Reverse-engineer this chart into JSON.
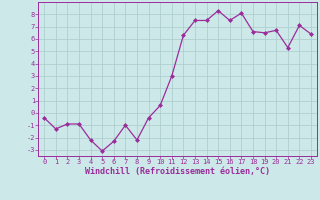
{
  "x": [
    0,
    1,
    2,
    3,
    4,
    5,
    6,
    7,
    8,
    9,
    10,
    11,
    12,
    13,
    14,
    15,
    16,
    17,
    18,
    19,
    20,
    21,
    22,
    23
  ],
  "y": [
    -0.4,
    -1.3,
    -0.9,
    -0.9,
    -2.2,
    -3.1,
    -2.3,
    -1.0,
    -2.2,
    -0.4,
    0.6,
    3.0,
    6.3,
    7.5,
    7.5,
    8.3,
    7.5,
    8.1,
    6.6,
    6.5,
    6.7,
    5.3,
    7.1,
    6.4
  ],
  "line_color": "#9b2d9b",
  "marker": "D",
  "markersize": 2.0,
  "linewidth": 0.9,
  "xlabel": "Windchill (Refroidissement éolien,°C)",
  "xlabel_fontsize": 6.0,
  "background_color": "#cce8e8",
  "grid_color": "#aacccc",
  "xlim": [
    -0.5,
    23.5
  ],
  "ylim": [
    -3.5,
    9.0
  ],
  "yticks": [
    -3,
    -2,
    -1,
    0,
    1,
    2,
    3,
    4,
    5,
    6,
    7,
    8
  ],
  "xticks": [
    0,
    1,
    2,
    3,
    4,
    5,
    6,
    7,
    8,
    9,
    10,
    11,
    12,
    13,
    14,
    15,
    16,
    17,
    18,
    19,
    20,
    21,
    22,
    23
  ],
  "tick_fontsize": 5.0,
  "tick_color": "#9b2d9b",
  "spine_color": "#9b2d9b"
}
